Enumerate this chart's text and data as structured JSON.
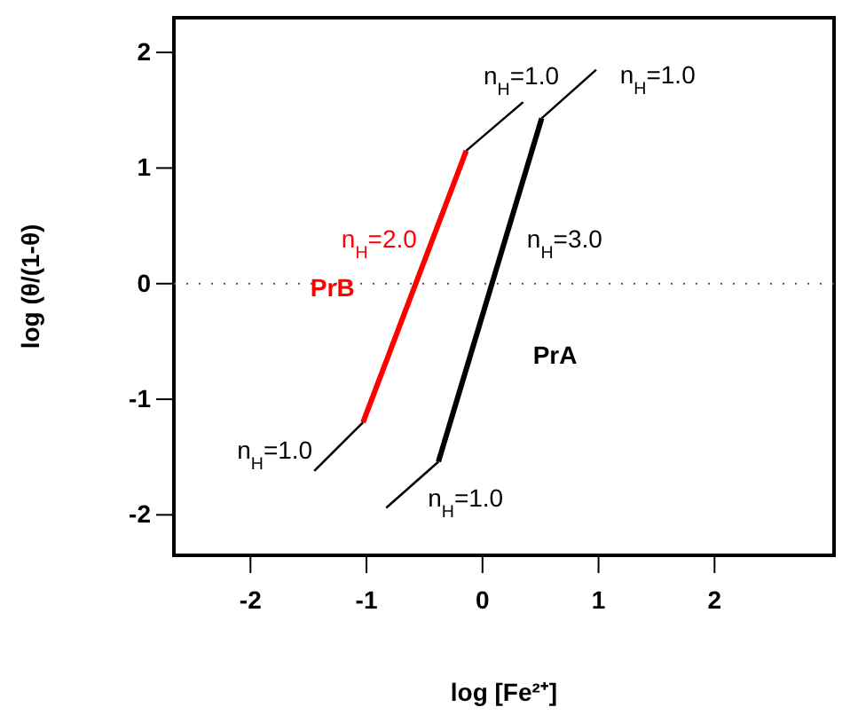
{
  "chart_data": {
    "type": "line",
    "xlabel": "log [Fe²⁺]",
    "ylabel": "log (θ/(1-θ)",
    "xlim": [
      -2.66,
      3.03
    ],
    "ylim": [
      -2.35,
      2.3
    ],
    "xticks": [
      -2,
      -1,
      0,
      1,
      2
    ],
    "yticks": [
      -2,
      -1,
      0,
      1,
      2
    ],
    "grid": false,
    "marker": "none",
    "line_style": "solid",
    "series": [
      {
        "name": "PrB",
        "color": "#ff0000",
        "x": [
          -1.03,
          -0.14
        ],
        "values": [
          -1.2,
          1.15
        ]
      },
      {
        "name": "PrA",
        "color": "#000000",
        "x": [
          -0.38,
          0.51
        ],
        "values": [
          -1.54,
          1.43
        ]
      },
      {
        "color": "#000000",
        "x": [
          -1.45,
          -1.03
        ],
        "values": [
          -1.62,
          -1.2
        ]
      },
      {
        "color": "#000000",
        "x": [
          -0.14,
          0.35
        ],
        "values": [
          1.15,
          1.57
        ]
      },
      {
        "color": "#000000",
        "x": [
          -0.83,
          -0.38
        ],
        "values": [
          -1.94,
          -1.54
        ]
      },
      {
        "color": "#000000",
        "x": [
          0.51,
          0.98
        ],
        "values": [
          1.43,
          1.85
        ]
      }
    ],
    "ref_lines": [
      {
        "axis": "y",
        "value": 0,
        "line_style": "dotted",
        "color": "#555555"
      }
    ],
    "annotations": [
      "n$_{H}$=2.0",
      "n$_{H}$=3.0",
      "n$_{H}$=1.0",
      "n$_{H}$=1.0",
      "n$_{H}$=1.0",
      "n$_{H}$=1.0"
    ]
  }
}
